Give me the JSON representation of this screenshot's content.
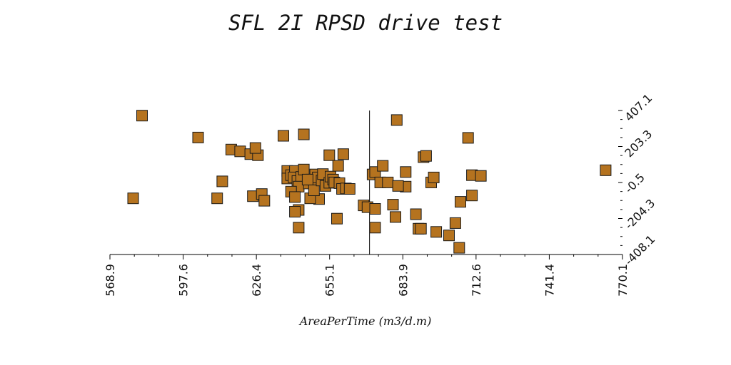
{
  "chart_data": {
    "type": "scatter",
    "title": "SFL 2I RPSD drive test",
    "xlabel": "AreaPerTime (m3/d.m)",
    "ylabel": "",
    "xlim": [
      568.9,
      770.1
    ],
    "ylim": [
      -408.1,
      407.1
    ],
    "x_ticks": [
      "568.9",
      "597.6",
      "626.4",
      "655.1",
      "683.9",
      "712.6",
      "741.4",
      "770.1"
    ],
    "y_ticks": [
      "407.1",
      "203.3",
      "-0.5",
      "-204.3",
      "-408.1"
    ],
    "y_axis_position": "right",
    "reference_line_x": 670.8,
    "marker": "square",
    "marker_color": "#b5731f",
    "points": [
      [
        581.5,
        378.0
      ],
      [
        578.0,
        -90.0
      ],
      [
        603.5,
        254.0
      ],
      [
        611.0,
        -90.0
      ],
      [
        616.5,
        186.0
      ],
      [
        620.0,
        176.0
      ],
      [
        613.0,
        6.0
      ],
      [
        624.0,
        160.0
      ],
      [
        627.0,
        154.0
      ],
      [
        625.0,
        -78.0
      ],
      [
        628.5,
        -66.0
      ],
      [
        629.5,
        -104.0
      ],
      [
        626.0,
        195.0
      ],
      [
        637.0,
        264.0
      ],
      [
        645.0,
        272.0
      ],
      [
        638.5,
        65.0
      ],
      [
        638.5,
        22.0
      ],
      [
        640.0,
        41.0
      ],
      [
        641.5,
        65.0
      ],
      [
        641.0,
        28.0
      ],
      [
        642.5,
        8.0
      ],
      [
        644.0,
        31.0
      ],
      [
        645.0,
        73.0
      ],
      [
        643.0,
        -24.0
      ],
      [
        647.0,
        -6.0
      ],
      [
        648.0,
        16.0
      ],
      [
        649.5,
        45.0
      ],
      [
        650.5,
        28.0
      ],
      [
        651.0,
        -94.0
      ],
      [
        640.0,
        -52.0
      ],
      [
        641.5,
        -83.0
      ],
      [
        643.0,
        -156.0
      ],
      [
        641.5,
        -166.0
      ],
      [
        647.5,
        -90.0
      ],
      [
        646.5,
        16.0
      ],
      [
        649.0,
        -45.0
      ],
      [
        652.0,
        11.0
      ],
      [
        652.5,
        47.0
      ],
      [
        653.5,
        -20.0
      ],
      [
        655.0,
        -2.0
      ],
      [
        655.5,
        33.0
      ],
      [
        656.5,
        16.0
      ],
      [
        655.0,
        154.0
      ],
      [
        657.0,
        0.0
      ],
      [
        659.0,
        -4.0
      ],
      [
        660.0,
        -37.0
      ],
      [
        661.5,
        -34.0
      ],
      [
        663.0,
        -37.0
      ],
      [
        658.5,
        94.0
      ],
      [
        660.5,
        160.0
      ],
      [
        658.0,
        -205.0
      ],
      [
        643.0,
        -256.0
      ],
      [
        668.5,
        -130.0
      ],
      [
        670.0,
        -140.0
      ],
      [
        673.0,
        -150.0
      ],
      [
        673.0,
        -256.0
      ],
      [
        672.0,
        45.0
      ],
      [
        673.0,
        59.0
      ],
      [
        676.0,
        94.0
      ],
      [
        675.0,
        0.0
      ],
      [
        678.0,
        0.0
      ],
      [
        680.0,
        -126.0
      ],
      [
        681.0,
        -196.0
      ],
      [
        681.5,
        353.0
      ],
      [
        685.0,
        59.0
      ],
      [
        685.0,
        -24.0
      ],
      [
        682.0,
        -20.0
      ],
      [
        689.0,
        -180.0
      ],
      [
        692.0,
        143.0
      ],
      [
        693.0,
        150.0
      ],
      [
        695.0,
        0.0
      ],
      [
        696.0,
        28.0
      ],
      [
        690.0,
        -262.0
      ],
      [
        691.0,
        -262.0
      ],
      [
        697.0,
        -280.0
      ],
      [
        702.0,
        -300.0
      ],
      [
        704.5,
        -230.0
      ],
      [
        706.0,
        -370.0
      ],
      [
        706.5,
        -110.0
      ],
      [
        709.5,
        252.0
      ],
      [
        711.0,
        41.0
      ],
      [
        711.0,
        -74.0
      ],
      [
        714.5,
        37.0
      ],
      [
        763.5,
        69.0
      ]
    ]
  }
}
